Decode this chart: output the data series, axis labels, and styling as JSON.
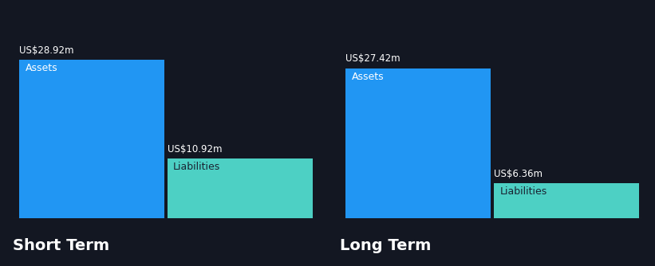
{
  "background_color": "#131722",
  "asset_color": "#2196f3",
  "liability_color": "#4dd0c4",
  "text_color_white": "#ffffff",
  "text_color_dark": "#1a2332",
  "axis_color": "#3a3f4a",
  "short_term": {
    "label": "Short Term",
    "assets_value": 28.92,
    "assets_label": "US$28.92m",
    "liabilities_value": 10.92,
    "liabilities_label": "US$10.92m",
    "asset_bar_label": "Assets",
    "liability_bar_label": "Liabilities"
  },
  "long_term": {
    "label": "Long Term",
    "assets_value": 27.42,
    "assets_label": "US$27.42m",
    "liabilities_value": 6.36,
    "liabilities_label": "US$6.36m",
    "asset_bar_label": "Assets",
    "liability_bar_label": "Liabilities"
  },
  "max_value": 30.5,
  "label_fontsize": 8.5,
  "bar_label_fontsize": 9,
  "section_label_fontsize": 14
}
